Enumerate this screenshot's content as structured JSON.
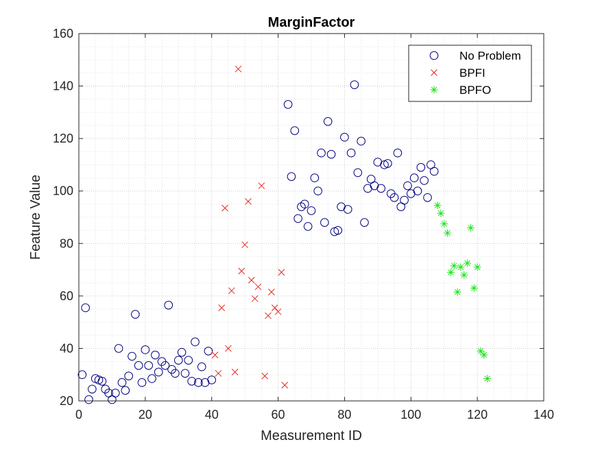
{
  "chart_data": {
    "type": "scatter",
    "title": "MarginFactor",
    "xlabel": "Measurement ID",
    "ylabel": "Feature Value",
    "xlim": [
      0,
      140
    ],
    "ylim": [
      20,
      160
    ],
    "xticks": [
      "0",
      "20",
      "40",
      "60",
      "80",
      "100",
      "120",
      "140"
    ],
    "yticks": [
      "20",
      "40",
      "60",
      "80",
      "100",
      "120",
      "140",
      "160"
    ],
    "grid": "on (major + minor, dotted)",
    "legend_position": "top-right",
    "series": [
      {
        "name": "No Problem",
        "marker": "circle",
        "color": "#00007f",
        "x": [
          1,
          2,
          3,
          4,
          5,
          6,
          7,
          8,
          9,
          10,
          11,
          12,
          13,
          14,
          15,
          16,
          17,
          18,
          19,
          20,
          21,
          22,
          23,
          24,
          25,
          26,
          27,
          28,
          29,
          30,
          31,
          32,
          33,
          34,
          35,
          36,
          37,
          38,
          39,
          40,
          63,
          64,
          65,
          66,
          67,
          68,
          69,
          70,
          71,
          72,
          73,
          74,
          75,
          76,
          77,
          78,
          79,
          80,
          81,
          82,
          83,
          84,
          85,
          86,
          87,
          88,
          89,
          90,
          91,
          92,
          93,
          94,
          95,
          96,
          97,
          98,
          99,
          100,
          101,
          102,
          103,
          104,
          105,
          106,
          107
        ],
        "y": [
          30,
          55.5,
          20.5,
          24.5,
          28.5,
          28,
          27.5,
          24.5,
          23,
          20.5,
          23,
          40,
          27,
          24,
          29.5,
          37,
          53,
          33.5,
          27,
          39.5,
          33.5,
          28.5,
          37.5,
          31,
          35,
          33.5,
          56.5,
          32,
          30.5,
          35.5,
          38.5,
          30.5,
          35.5,
          27.5,
          42.5,
          27,
          33,
          27,
          39,
          28,
          133,
          105.5,
          123,
          89.5,
          94,
          95,
          86.5,
          92.5,
          105,
          100,
          114.5,
          88,
          126.5,
          114,
          84.5,
          85,
          94,
          120.5,
          93,
          114.5,
          140.5,
          107,
          119,
          88,
          101,
          104.5,
          102,
          111,
          101,
          110,
          110.5,
          99,
          97.5,
          114.5,
          94,
          96.5,
          102,
          99,
          105,
          100,
          109,
          104,
          97.5,
          110,
          107.5
        ]
      },
      {
        "name": "BPFI",
        "marker": "x",
        "color": "#e8291d",
        "x": [
          41,
          42,
          43,
          44,
          45,
          46,
          47,
          48,
          49,
          50,
          51,
          52,
          53,
          54,
          55,
          56,
          57,
          58,
          59,
          60,
          61,
          62
        ],
        "y": [
          37.5,
          30.5,
          55.5,
          93.5,
          40,
          62,
          31,
          146.5,
          69.5,
          79.5,
          96,
          66,
          59,
          63.5,
          102,
          29.5,
          52.5,
          61.5,
          55.5,
          54,
          69,
          26
        ]
      },
      {
        "name": "BPFO",
        "marker": "asterisk",
        "color": "#19e619",
        "x": [
          108,
          109,
          110,
          111,
          112,
          113,
          114,
          115,
          116,
          117,
          118,
          119,
          120,
          121,
          122,
          123
        ],
        "y": [
          94.5,
          91.5,
          87.5,
          84,
          69,
          71.5,
          61.5,
          71,
          68,
          72.5,
          86,
          63,
          71,
          39,
          37.5,
          28.5
        ]
      }
    ]
  }
}
